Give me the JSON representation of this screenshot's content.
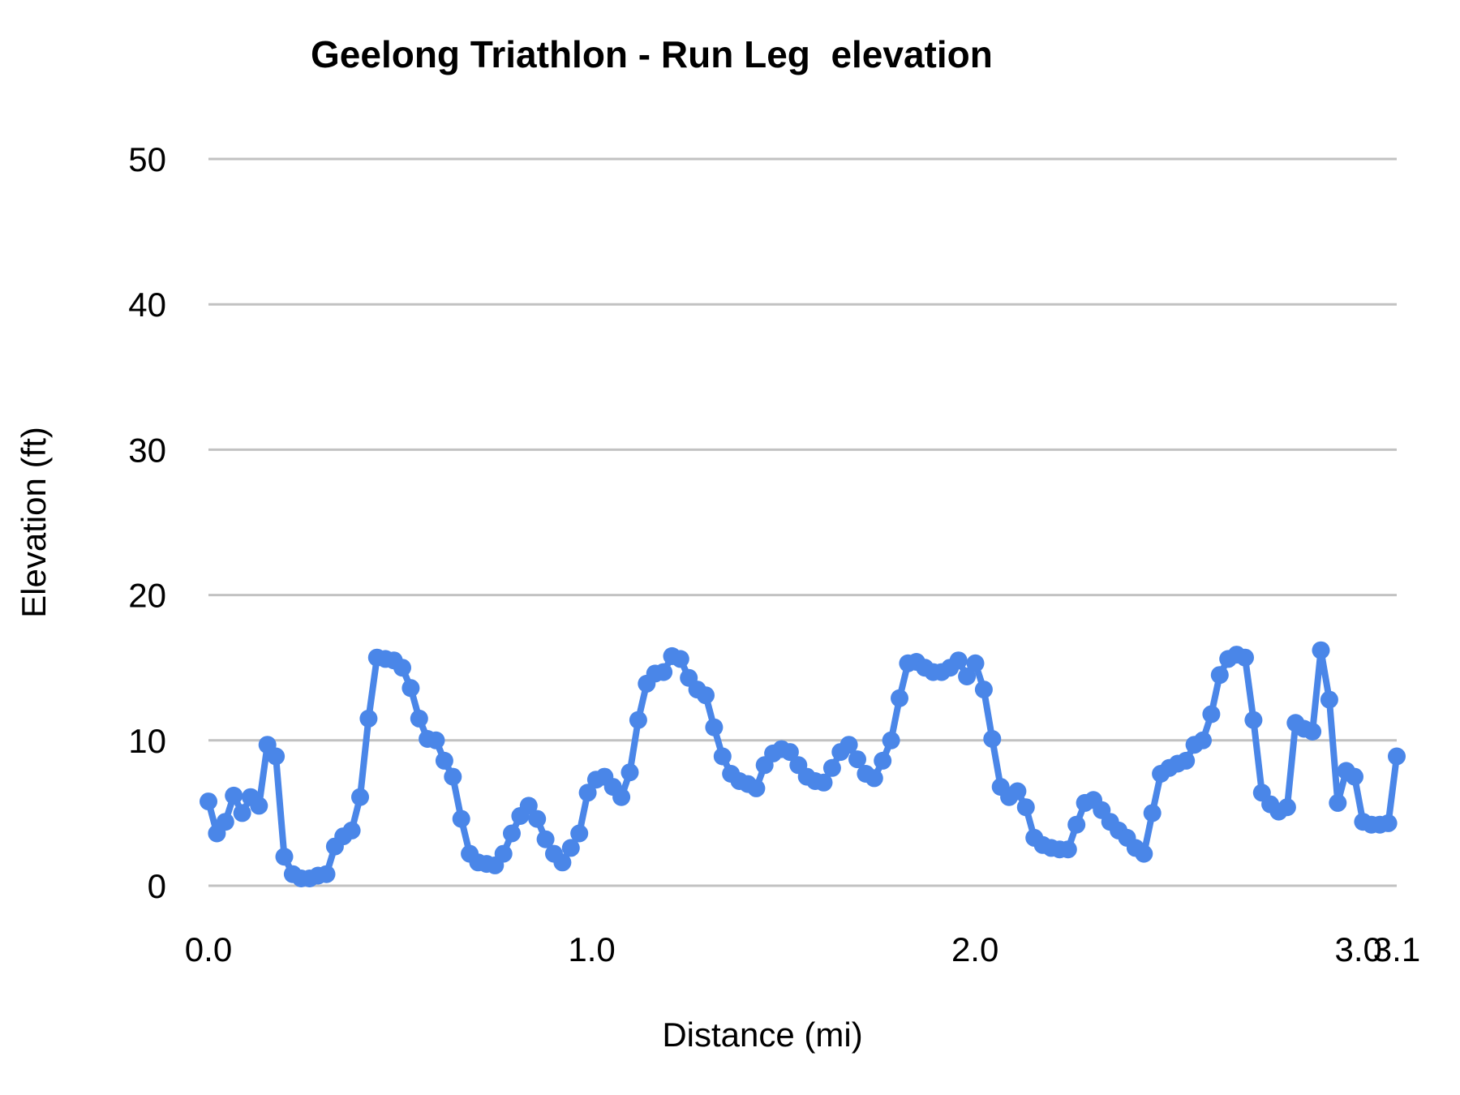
{
  "chart_data": {
    "type": "line",
    "title": "Geelong Triathlon - Run Leg  elevation",
    "xlabel": "Distance (mi)",
    "ylabel": "Elevation (ft)",
    "x_range": [
      0,
      3.1
    ],
    "ylim": [
      0,
      50
    ],
    "grid": true,
    "legend_position": "none",
    "y_ticks": [
      {
        "value": 0,
        "label": "0"
      },
      {
        "value": 10,
        "label": "10"
      },
      {
        "value": 20,
        "label": "20"
      },
      {
        "value": 30,
        "label": "30"
      },
      {
        "value": 40,
        "label": "40"
      },
      {
        "value": 50,
        "label": "50"
      }
    ],
    "x_ticks": [
      {
        "value": 0,
        "label": "0.0"
      },
      {
        "value": 1,
        "label": "1.0"
      },
      {
        "value": 2,
        "label": "2.0"
      },
      {
        "value": 3,
        "label": "3.0"
      },
      {
        "value": 3.1,
        "label": "3.1"
      }
    ],
    "series": [
      {
        "name": "elevation",
        "color": "#4a86e8",
        "marker": "circle",
        "x_spacing": "uniform from 0 to 3.1 mi",
        "values": [
          5.8,
          3.6,
          4.4,
          6.2,
          5.0,
          6.1,
          5.5,
          9.7,
          8.9,
          2.0,
          0.8,
          0.5,
          0.5,
          0.7,
          0.8,
          2.7,
          3.4,
          3.8,
          6.1,
          11.5,
          15.7,
          15.6,
          15.5,
          15.0,
          13.6,
          11.5,
          10.1,
          10.0,
          8.6,
          7.5,
          4.6,
          2.2,
          1.6,
          1.5,
          1.4,
          2.2,
          3.6,
          4.8,
          5.5,
          4.6,
          3.2,
          2.2,
          1.6,
          2.6,
          3.6,
          6.4,
          7.3,
          7.5,
          6.8,
          6.1,
          7.8,
          11.4,
          13.9,
          14.6,
          14.7,
          15.8,
          15.6,
          14.3,
          13.5,
          13.1,
          10.9,
          8.9,
          7.7,
          7.2,
          7.0,
          6.7,
          8.3,
          9.1,
          9.4,
          9.2,
          8.3,
          7.5,
          7.2,
          7.1,
          8.1,
          9.2,
          9.7,
          8.7,
          7.7,
          7.4,
          8.6,
          10.0,
          12.9,
          15.3,
          15.4,
          15.0,
          14.7,
          14.7,
          15.0,
          15.5,
          14.4,
          15.3,
          13.5,
          10.1,
          6.8,
          6.1,
          6.5,
          5.4,
          3.3,
          2.8,
          2.6,
          2.5,
          2.5,
          4.2,
          5.7,
          5.9,
          5.2,
          4.4,
          3.8,
          3.3,
          2.6,
          2.2,
          5.0,
          7.7,
          8.1,
          8.4,
          8.6,
          9.7,
          10.0,
          11.8,
          14.5,
          15.6,
          15.9,
          15.7,
          11.4,
          6.4,
          5.6,
          5.1,
          5.4,
          11.2,
          10.8,
          10.6,
          16.2,
          12.8,
          5.7,
          7.9,
          7.5,
          4.4,
          4.2,
          4.2,
          4.3,
          8.9
        ]
      }
    ],
    "colors": {
      "series_blue": "#4a86e8",
      "gridline_gray": "#c2c2c2",
      "text_black": "#000000",
      "background": "#ffffff"
    }
  }
}
